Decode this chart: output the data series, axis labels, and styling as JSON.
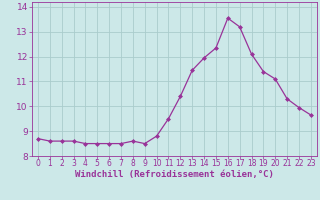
{
  "x": [
    0,
    1,
    2,
    3,
    4,
    5,
    6,
    7,
    8,
    9,
    10,
    11,
    12,
    13,
    14,
    15,
    16,
    17,
    18,
    19,
    20,
    21,
    22,
    23
  ],
  "y": [
    8.7,
    8.6,
    8.6,
    8.6,
    8.5,
    8.5,
    8.5,
    8.5,
    8.6,
    8.5,
    8.8,
    9.5,
    10.4,
    11.45,
    11.95,
    12.35,
    13.55,
    13.2,
    12.1,
    11.4,
    11.1,
    10.3,
    9.95,
    9.65
  ],
  "line_color": "#993399",
  "marker": "D",
  "marker_size": 2.0,
  "bg_color": "#cce8e8",
  "grid_color": "#aacccc",
  "xlabel": "Windchill (Refroidissement éolien,°C)",
  "xlabel_color": "#993399",
  "tick_color": "#993399",
  "ylim": [
    8.0,
    14.2
  ],
  "xlim": [
    -0.5,
    23.5
  ],
  "yticks": [
    8,
    9,
    10,
    11,
    12,
    13,
    14
  ],
  "xticks": [
    0,
    1,
    2,
    3,
    4,
    5,
    6,
    7,
    8,
    9,
    10,
    11,
    12,
    13,
    14,
    15,
    16,
    17,
    18,
    19,
    20,
    21,
    22,
    23
  ],
  "xlabel_fontsize": 6.5,
  "xtick_fontsize": 5.5,
  "ytick_fontsize": 6.5
}
